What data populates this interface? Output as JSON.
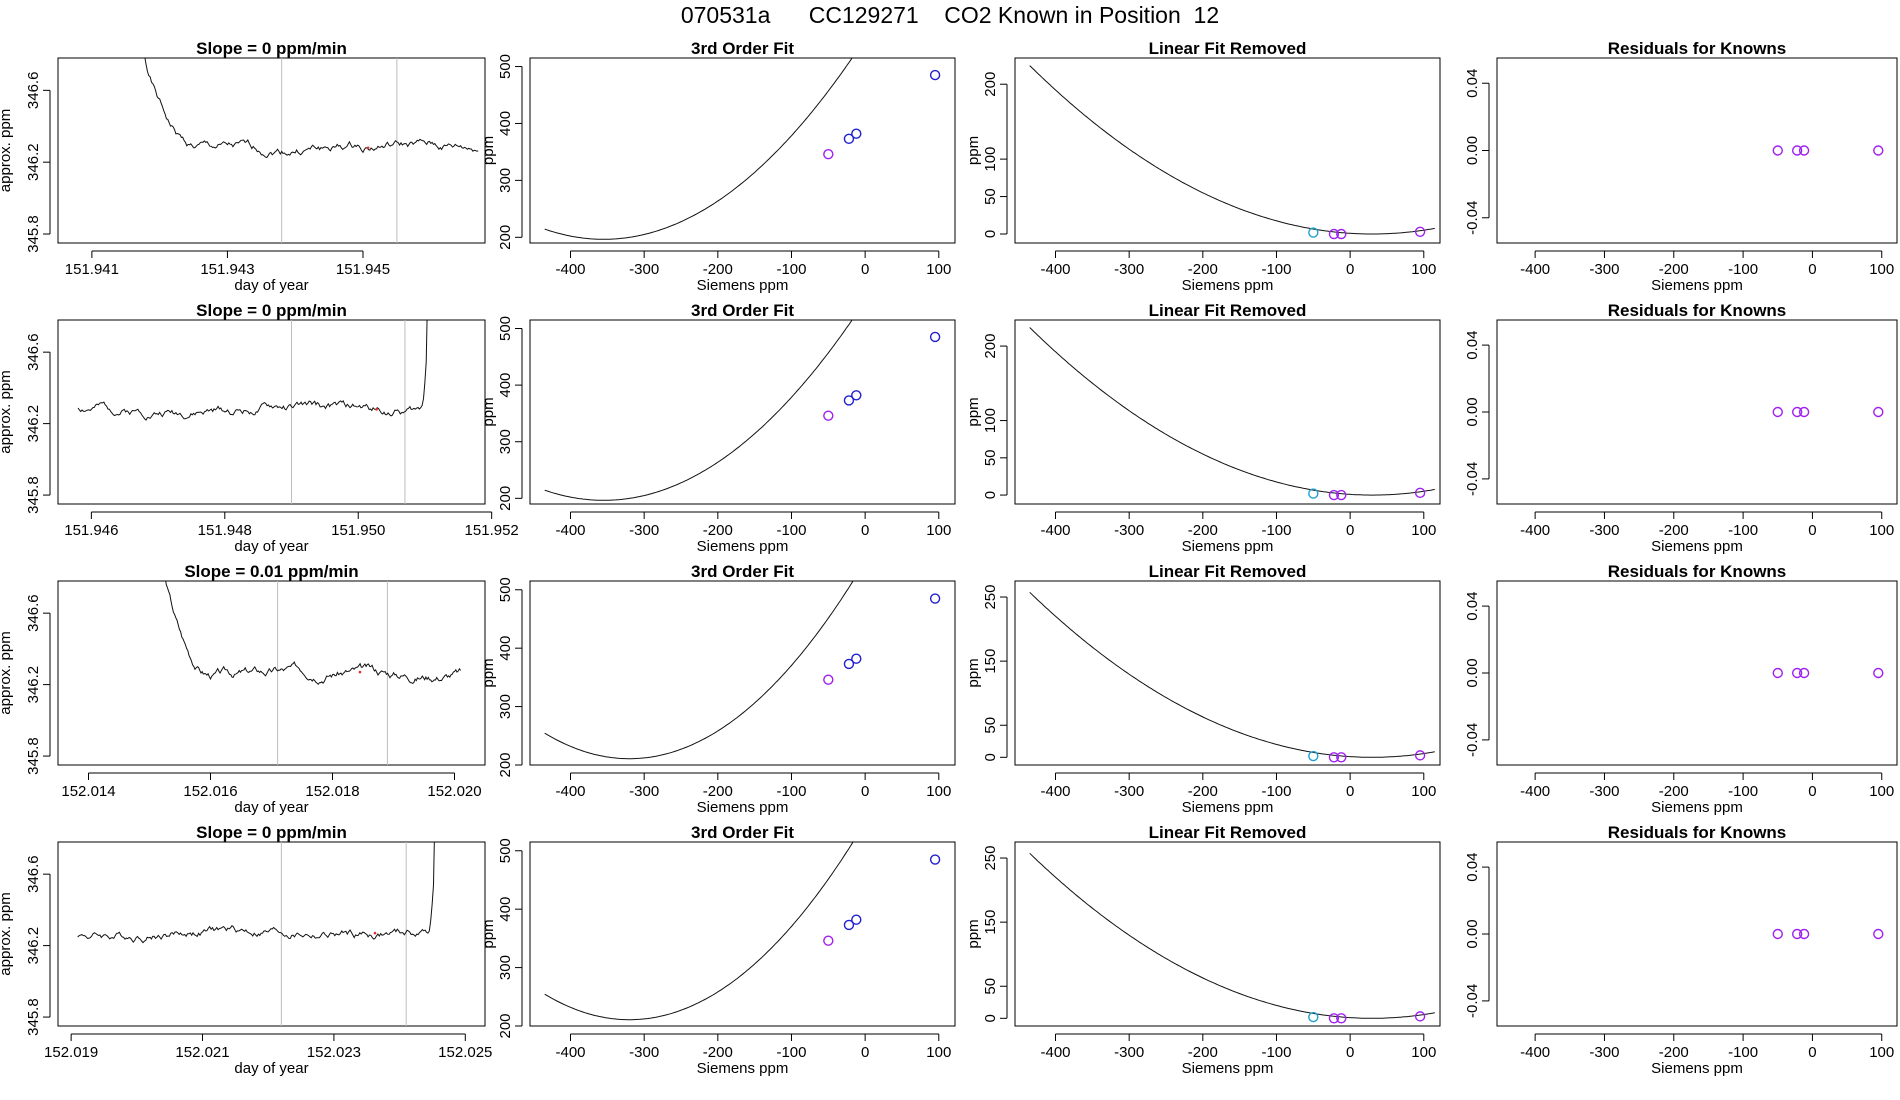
{
  "title": "070531a      CC129271    CO2 Known in Position  12",
  "colors": {
    "axis": "#000000",
    "line": "#111111",
    "vline": "#bdbdbd",
    "blue": "#2020d0",
    "purple": "#a020f0",
    "cyan": "#20a0d0",
    "red": "#e03030"
  },
  "chart_data": [
    {
      "type": "line",
      "row": 0,
      "col": 0,
      "title": "Slope =  0  ppm/min",
      "xlabel": "day of year",
      "ylabel": "approx. ppm",
      "xlim": [
        151.9405,
        151.9468
      ],
      "ylim": [
        345.75,
        346.78
      ],
      "xticks": [
        151.941,
        151.943,
        151.945
      ],
      "xticklabels": [
        "151.941",
        "151.943",
        "151.945"
      ],
      "yticks": [
        345.8,
        346.2,
        346.6
      ],
      "yticklabels": [
        "345.8",
        "346.2",
        "346.6"
      ],
      "vlines": [
        151.9438,
        151.9455
      ],
      "trace": {
        "x0": 151.9415,
        "x1": 151.9467,
        "base": 346.28,
        "spike": "start",
        "seed": 1
      }
    },
    {
      "type": "line",
      "row": 1,
      "col": 0,
      "title": "Slope =  0  ppm/min",
      "xlabel": "day of year",
      "ylabel": "approx. ppm",
      "xlim": [
        151.9455,
        151.9519
      ],
      "ylim": [
        345.75,
        346.78
      ],
      "xticks": [
        151.946,
        151.948,
        151.95,
        151.952
      ],
      "xticklabels": [
        "151.946",
        "151.948",
        "151.950",
        "151.952"
      ],
      "yticks": [
        345.8,
        346.2,
        346.6
      ],
      "yticklabels": [
        "345.8",
        "346.2",
        "346.6"
      ],
      "vlines": [
        151.949,
        151.9507
      ],
      "trace": {
        "x0": 151.9458,
        "x1": 151.9511,
        "base": 346.28,
        "spike": "end",
        "seed": 2
      }
    },
    {
      "type": "line",
      "row": 2,
      "col": 0,
      "title": "Slope =  0.01  ppm/min",
      "xlabel": "day of year",
      "ylabel": "approx. ppm",
      "xlim": [
        152.0135,
        152.0205
      ],
      "ylim": [
        345.75,
        346.78
      ],
      "xticks": [
        152.014,
        152.016,
        152.018,
        152.02
      ],
      "xticklabels": [
        "152.014",
        "152.016",
        "152.018",
        "152.020"
      ],
      "yticks": [
        345.8,
        346.2,
        346.6
      ],
      "yticklabels": [
        "345.8",
        "346.2",
        "346.6"
      ],
      "vlines": [
        152.0171,
        152.0189
      ],
      "trace": {
        "x0": 152.015,
        "x1": 152.0201,
        "base": 346.27,
        "spike": "start",
        "seed": 3
      }
    },
    {
      "type": "line",
      "row": 3,
      "col": 0,
      "title": "Slope =  0  ppm/min",
      "xlabel": "day of year",
      "ylabel": "approx. ppm",
      "xlim": [
        152.0188,
        152.0253
      ],
      "ylim": [
        345.75,
        346.78
      ],
      "xticks": [
        152.019,
        152.021,
        152.023,
        152.025
      ],
      "xticklabels": [
        "152.019",
        "152.021",
        "152.023",
        "152.025"
      ],
      "yticks": [
        345.8,
        346.2,
        346.6
      ],
      "yticklabels": [
        "345.8",
        "346.2",
        "346.6"
      ],
      "vlines": [
        152.0222,
        152.0241
      ],
      "trace": {
        "x0": 152.0191,
        "x1": 152.0246,
        "base": 346.27,
        "spike": "end",
        "seed": 4
      }
    },
    {
      "type": "scatter",
      "row": 0,
      "col": 1,
      "title": "3rd Order Fit",
      "xlabel": "Siemens ppm",
      "ylabel": "ppm",
      "xlim": [
        -455,
        122
      ],
      "ylim": [
        190,
        515
      ],
      "xticks": [
        -400,
        -300,
        -200,
        -100,
        0,
        100
      ],
      "yticks": [
        200,
        300,
        400,
        500
      ],
      "curve": {
        "x0": -435,
        "x1": 115,
        "vertex_x": -355,
        "min_y": 196.5,
        "k": 0.0028
      },
      "points": [
        {
          "x": -50,
          "y": 346,
          "color": "purple"
        },
        {
          "x": -22,
          "y": 373,
          "color": "blue"
        },
        {
          "x": -12,
          "y": 382,
          "color": "blue"
        },
        {
          "x": 95,
          "y": 485,
          "color": "blue"
        }
      ]
    },
    {
      "type": "scatter",
      "row": 1,
      "col": 1,
      "title": "3rd Order Fit",
      "xlabel": "Siemens ppm",
      "ylabel": "ppm",
      "xlim": [
        -455,
        122
      ],
      "ylim": [
        190,
        515
      ],
      "xticks": [
        -400,
        -300,
        -200,
        -100,
        0,
        100
      ],
      "yticks": [
        200,
        300,
        400,
        500
      ],
      "curve": {
        "x0": -435,
        "x1": 115,
        "vertex_x": -355,
        "min_y": 196.5,
        "k": 0.0028
      },
      "points": [
        {
          "x": -50,
          "y": 346,
          "color": "purple"
        },
        {
          "x": -22,
          "y": 373,
          "color": "blue"
        },
        {
          "x": -12,
          "y": 382,
          "color": "blue"
        },
        {
          "x": 95,
          "y": 485,
          "color": "blue"
        }
      ]
    },
    {
      "type": "scatter",
      "row": 2,
      "col": 1,
      "title": "3rd Order Fit",
      "xlabel": "Siemens ppm",
      "ylabel": "ppm",
      "xlim": [
        -455,
        122
      ],
      "ylim": [
        200,
        515
      ],
      "xticks": [
        -400,
        -300,
        -200,
        -100,
        0,
        100
      ],
      "yticks": [
        200,
        300,
        400,
        500
      ],
      "curve": {
        "x0": -435,
        "x1": 115,
        "vertex_x": -320,
        "min_y": 210.8,
        "k": 0.0033
      },
      "points": [
        {
          "x": -50,
          "y": 346,
          "color": "purple"
        },
        {
          "x": -22,
          "y": 373,
          "color": "blue"
        },
        {
          "x": -12,
          "y": 382,
          "color": "blue"
        },
        {
          "x": 95,
          "y": 485,
          "color": "blue"
        }
      ]
    },
    {
      "type": "scatter",
      "row": 3,
      "col": 1,
      "title": "3rd Order Fit",
      "xlabel": "Siemens ppm",
      "ylabel": "ppm",
      "xlim": [
        -455,
        122
      ],
      "ylim": [
        200,
        515
      ],
      "xticks": [
        -400,
        -300,
        -200,
        -100,
        0,
        100
      ],
      "yticks": [
        200,
        300,
        400,
        500
      ],
      "curve": {
        "x0": -435,
        "x1": 115,
        "vertex_x": -320,
        "min_y": 210.8,
        "k": 0.0033
      },
      "points": [
        {
          "x": -50,
          "y": 346,
          "color": "purple"
        },
        {
          "x": -22,
          "y": 373,
          "color": "blue"
        },
        {
          "x": -12,
          "y": 382,
          "color": "blue"
        },
        {
          "x": 95,
          "y": 485,
          "color": "blue"
        }
      ]
    },
    {
      "type": "scatter",
      "row": 0,
      "col": 2,
      "title": "Linear Fit Removed",
      "xlabel": "Siemens ppm",
      "ylabel": "ppm",
      "xlim": [
        -455,
        122
      ],
      "ylim": [
        -12,
        235
      ],
      "xticks": [
        -400,
        -300,
        -200,
        -100,
        0,
        100
      ],
      "yticks": [
        0,
        50,
        100,
        200
      ],
      "curve": {
        "x0": -435,
        "x1": 115,
        "vertex_x": 30,
        "min_y": 0,
        "k": 0.00104
      },
      "points": [
        {
          "x": -50,
          "y": 2,
          "color": "cyan"
        },
        {
          "x": -22,
          "y": 0,
          "color": "purple"
        },
        {
          "x": -12,
          "y": 0,
          "color": "purple"
        },
        {
          "x": 95,
          "y": 3,
          "color": "purple"
        }
      ]
    },
    {
      "type": "scatter",
      "row": 1,
      "col": 2,
      "title": "Linear Fit Removed",
      "xlabel": "Siemens ppm",
      "ylabel": "ppm",
      "xlim": [
        -455,
        122
      ],
      "ylim": [
        -12,
        235
      ],
      "xticks": [
        -400,
        -300,
        -200,
        -100,
        0,
        100
      ],
      "yticks": [
        0,
        50,
        100,
        200
      ],
      "curve": {
        "x0": -435,
        "x1": 115,
        "vertex_x": 30,
        "min_y": 0,
        "k": 0.00104
      },
      "points": [
        {
          "x": -50,
          "y": 2,
          "color": "cyan"
        },
        {
          "x": -22,
          "y": 0,
          "color": "purple"
        },
        {
          "x": -12,
          "y": 0,
          "color": "purple"
        },
        {
          "x": 95,
          "y": 3,
          "color": "purple"
        }
      ]
    },
    {
      "type": "scatter",
      "row": 2,
      "col": 2,
      "title": "Linear Fit Removed",
      "xlabel": "Siemens ppm",
      "ylabel": "ppm",
      "xlim": [
        -455,
        122
      ],
      "ylim": [
        -12,
        275
      ],
      "xticks": [
        -400,
        -300,
        -200,
        -100,
        0,
        100
      ],
      "yticks": [
        0,
        50,
        150,
        250
      ],
      "curve": {
        "x0": -435,
        "x1": 115,
        "vertex_x": 30,
        "min_y": 0,
        "k": 0.00119
      },
      "points": [
        {
          "x": -50,
          "y": 2,
          "color": "cyan"
        },
        {
          "x": -22,
          "y": 0,
          "color": "purple"
        },
        {
          "x": -12,
          "y": 0,
          "color": "purple"
        },
        {
          "x": 95,
          "y": 3,
          "color": "purple"
        }
      ]
    },
    {
      "type": "scatter",
      "row": 3,
      "col": 2,
      "title": "Linear Fit Removed",
      "xlabel": "Siemens ppm",
      "ylabel": "ppm",
      "xlim": [
        -455,
        122
      ],
      "ylim": [
        -12,
        275
      ],
      "xticks": [
        -400,
        -300,
        -200,
        -100,
        0,
        100
      ],
      "yticks": [
        0,
        50,
        150,
        250
      ],
      "curve": {
        "x0": -435,
        "x1": 115,
        "vertex_x": 30,
        "min_y": 0,
        "k": 0.00119
      },
      "points": [
        {
          "x": -50,
          "y": 2,
          "color": "cyan"
        },
        {
          "x": -22,
          "y": 0,
          "color": "purple"
        },
        {
          "x": -12,
          "y": 0,
          "color": "purple"
        },
        {
          "x": 95,
          "y": 3,
          "color": "purple"
        }
      ]
    },
    {
      "type": "scatter",
      "row": 0,
      "col": 3,
      "title": "Residuals for Knowns",
      "xlabel": "Siemens ppm",
      "ylabel": "",
      "xlim": [
        -455,
        122
      ],
      "ylim": [
        -0.055,
        0.055
      ],
      "xticks": [
        -400,
        -300,
        -200,
        -100,
        0,
        100
      ],
      "yticks": [
        -0.04,
        0,
        0.04
      ],
      "yticklabels": [
        "-0.04",
        "0.00",
        "0.04"
      ],
      "points": [
        {
          "x": -50,
          "y": 0,
          "color": "purple"
        },
        {
          "x": -22,
          "y": 0,
          "color": "purple"
        },
        {
          "x": -12,
          "y": 0,
          "color": "purple"
        },
        {
          "x": 95,
          "y": 0,
          "color": "purple"
        }
      ]
    },
    {
      "type": "scatter",
      "row": 1,
      "col": 3,
      "title": "Residuals for Knowns",
      "xlabel": "Siemens ppm",
      "ylabel": "",
      "xlim": [
        -455,
        122
      ],
      "ylim": [
        -0.055,
        0.055
      ],
      "xticks": [
        -400,
        -300,
        -200,
        -100,
        0,
        100
      ],
      "yticks": [
        -0.04,
        0,
        0.04
      ],
      "yticklabels": [
        "-0.04",
        "0.00",
        "0.04"
      ],
      "points": [
        {
          "x": -50,
          "y": 0,
          "color": "purple"
        },
        {
          "x": -22,
          "y": 0,
          "color": "purple"
        },
        {
          "x": -12,
          "y": 0,
          "color": "purple"
        },
        {
          "x": 95,
          "y": 0,
          "color": "purple"
        }
      ]
    },
    {
      "type": "scatter",
      "row": 2,
      "col": 3,
      "title": "Residuals for Knowns",
      "xlabel": "Siemens ppm",
      "ylabel": "",
      "xlim": [
        -455,
        122
      ],
      "ylim": [
        -0.055,
        0.055
      ],
      "xticks": [
        -400,
        -300,
        -200,
        -100,
        0,
        100
      ],
      "yticks": [
        -0.04,
        0,
        0.04
      ],
      "yticklabels": [
        "-0.04",
        "0.00",
        "0.04"
      ],
      "points": [
        {
          "x": -50,
          "y": 0,
          "color": "purple"
        },
        {
          "x": -22,
          "y": 0,
          "color": "purple"
        },
        {
          "x": -12,
          "y": 0,
          "color": "purple"
        },
        {
          "x": 95,
          "y": 0,
          "color": "purple"
        }
      ]
    },
    {
      "type": "scatter",
      "row": 3,
      "col": 3,
      "title": "Residuals for Knowns",
      "xlabel": "Siemens ppm",
      "ylabel": "",
      "xlim": [
        -455,
        122
      ],
      "ylim": [
        -0.055,
        0.055
      ],
      "xticks": [
        -400,
        -300,
        -200,
        -100,
        0,
        100
      ],
      "yticks": [
        -0.04,
        0,
        0.04
      ],
      "yticklabels": [
        "-0.04",
        "0.00",
        "0.04"
      ],
      "points": [
        {
          "x": -50,
          "y": 0,
          "color": "purple"
        },
        {
          "x": -22,
          "y": 0,
          "color": "purple"
        },
        {
          "x": -12,
          "y": 0,
          "color": "purple"
        },
        {
          "x": 95,
          "y": 0,
          "color": "purple"
        }
      ]
    }
  ]
}
